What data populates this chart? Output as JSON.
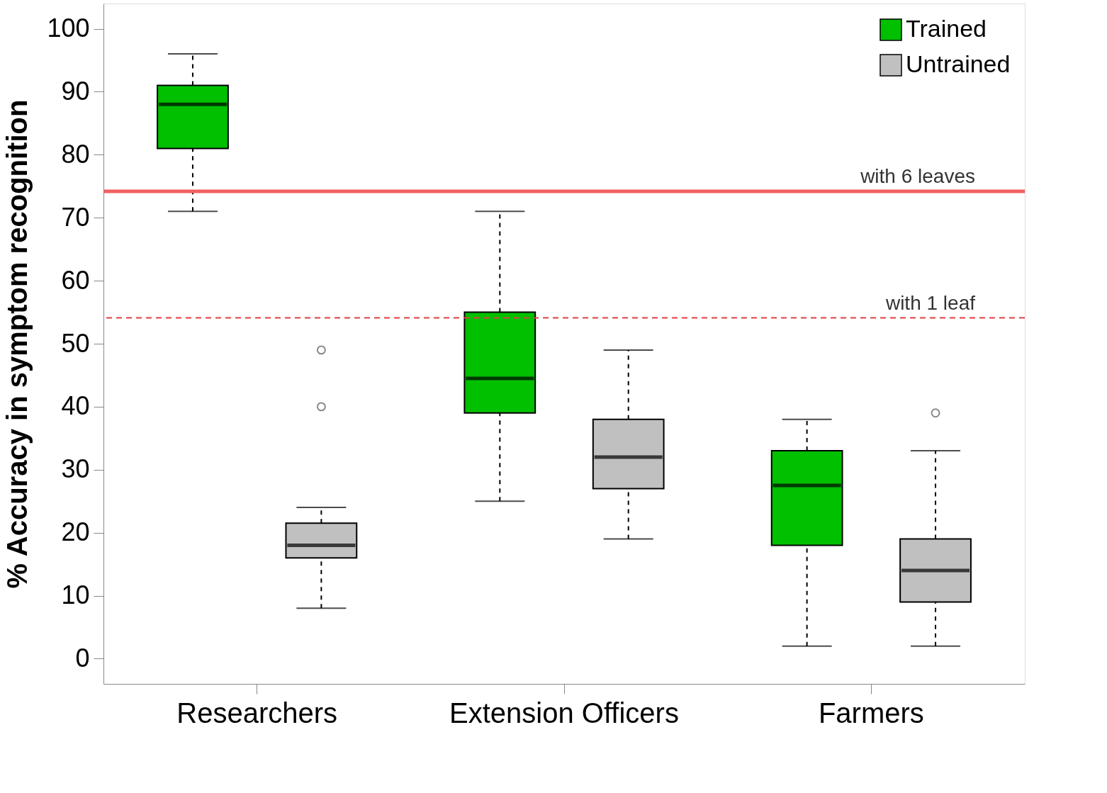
{
  "chart_data": {
    "type": "box",
    "ylabel": "% Accuracy in symptom recognition",
    "categories": [
      "Researchers",
      "Extension Officers",
      "Farmers"
    ],
    "series": [
      {
        "name": "Trained",
        "color": "#00c000",
        "boxes": [
          {
            "low": 71,
            "q1": 81,
            "median": 88,
            "q3": 91,
            "high": 96
          },
          {
            "low": 25,
            "q1": 39,
            "median": 44.5,
            "q3": 55,
            "high": 71
          },
          {
            "low": 2,
            "q1": 18,
            "median": 27.5,
            "q3": 33,
            "high": 38
          }
        ]
      },
      {
        "name": "Untrained",
        "color": "#c0c0c0",
        "boxes": [
          {
            "low": 8,
            "q1": 16,
            "median": 18,
            "q3": 21.5,
            "high": 24,
            "outliers": [
              40,
              49
            ]
          },
          {
            "low": 19,
            "q1": 27,
            "median": 32,
            "q3": 38,
            "high": 49
          },
          {
            "low": 2,
            "q1": 9,
            "median": 14,
            "q3": 19,
            "high": 33,
            "outliers": [
              39
            ]
          }
        ]
      }
    ],
    "ylim": [
      -4,
      104
    ],
    "yticks": [
      0,
      10,
      20,
      30,
      40,
      50,
      60,
      70,
      80,
      90,
      100
    ],
    "ref_lines": [
      {
        "axis": "y",
        "value": 74.2,
        "label": "with 6 leaves",
        "color": "#f06060",
        "line_style": "solid"
      },
      {
        "axis": "y",
        "value": 54.1,
        "label": "with 1 leaf",
        "color": "#e04040",
        "line_style": "dashed"
      }
    ],
    "legend": "top right",
    "grid": false
  }
}
